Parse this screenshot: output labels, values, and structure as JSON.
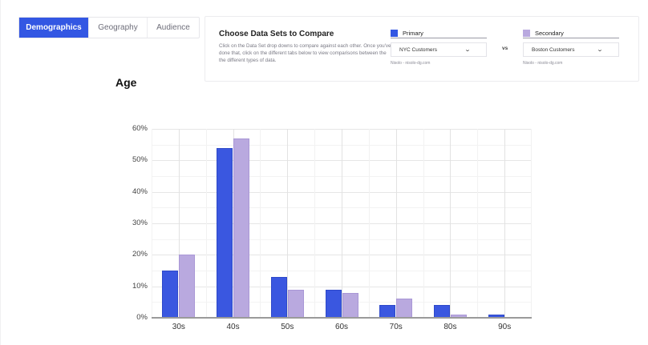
{
  "tabs": [
    {
      "label": "Demographics",
      "active": true
    },
    {
      "label": "Geography",
      "active": false
    },
    {
      "label": "Audience",
      "active": false
    }
  ],
  "compare_panel": {
    "title": "Choose Data Sets to Compare",
    "description": "Click on the Data Set drop downs to compare against each other. Once you've done that, click on the different tabs below to view comparisons between the the different types of data.",
    "vs_label": "vs",
    "primary": {
      "label": "Primary",
      "color": "#3357e3",
      "selected": "NYC Customers",
      "source": "Nisolo - nisolo-dg.com",
      "icon": "chevron-down-icon"
    },
    "secondary": {
      "label": "Secondary",
      "color": "#b9a9df",
      "selected": "Boston Customers",
      "source": "Nisolo - nisolo-dg.com",
      "icon": "chevron-down-icon"
    }
  },
  "chart_data": {
    "type": "bar",
    "title": "Age",
    "xlabel": "",
    "ylabel": "",
    "categories": [
      "30s",
      "40s",
      "50s",
      "60s",
      "70s",
      "80s",
      "90s"
    ],
    "series": [
      {
        "name": "Primary (NYC Customers)",
        "color": "#3a57e0",
        "values": [
          15,
          54,
          13,
          9,
          4,
          4,
          1
        ]
      },
      {
        "name": "Secondary (Boston Customers)",
        "color": "#b9a9df",
        "values": [
          20,
          57,
          9,
          8,
          6,
          1,
          0
        ]
      }
    ],
    "yticks": [
      "0%",
      "10%",
      "20%",
      "30%",
      "40%",
      "50%",
      "60%"
    ],
    "ylim": [
      0,
      60
    ],
    "y_unit": "%",
    "grid": true,
    "legend": "none (see Primary/Secondary selectors)"
  }
}
